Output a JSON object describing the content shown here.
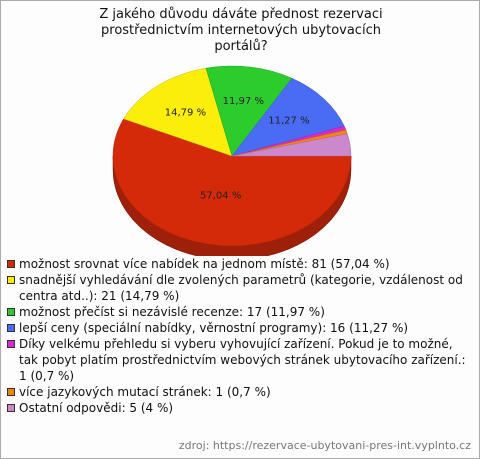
{
  "chart_data": {
    "type": "pie3d",
    "title": "Z jakého důvodu dáváte přednost rezervaci prostřednictvím internetových ubytovacích portálů?",
    "categories": [
      "možnost srovnat více nabídek na jednom místě: 81 (57,04 %)",
      "snadnější vyhledávání dle zvolených parametrů (kategorie, vzdálenost od centra atd..): 21 (14,79 %)",
      "možnost přečíst si nezávislé recenze: 17 (11,97 %)",
      "lepší ceny (speciální nabídky, věrnostní programy): 16 (11,27 %)",
      "Díky velkému přehledu si vyberu vyhovující zařízení. Pokud je to možné, tak pobyt platím prostřednictvím webových stránek ubytovacího zařízení.: 1 (0,7 %)",
      "více jazykových mutací stránek: 1 (0,7 %)",
      "Ostatní odpovědi: 5 (4 %)"
    ],
    "values": [
      57.04,
      14.79,
      11.97,
      11.27,
      0.7,
      0.7,
      4
    ],
    "value_labels": [
      "57,04 %",
      "14,79 %",
      "11,97 %",
      "11,27 %",
      null,
      null,
      null
    ],
    "colors": [
      "#d42a0a",
      "#fbee0a",
      "#2ccc2c",
      "#4a6cf4",
      "#d42ad4",
      "#f4840a",
      "#cc88cc"
    ],
    "source": "zdroj: https://rezervace-ubytovani-pres-int.vyplnto.cz"
  }
}
